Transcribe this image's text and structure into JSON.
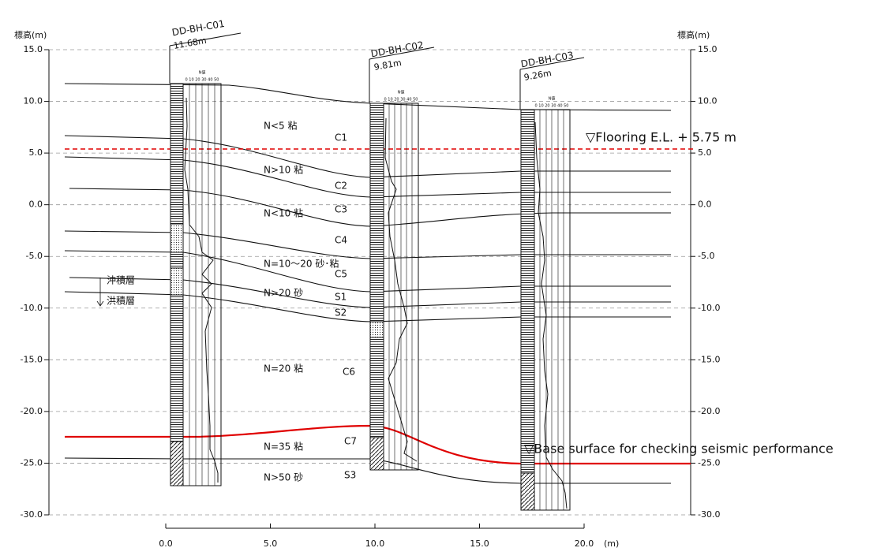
{
  "left_axis": {
    "title": "標高(m)",
    "ticks": [
      "15.0",
      "10.0",
      "5.0",
      "0.0",
      "-5.0",
      "-10.0",
      "-15.0",
      "-20.0",
      "-25.0",
      "-30.0"
    ]
  },
  "right_axis": {
    "title": "標高(m)",
    "ticks": [
      "15.0",
      "10.0",
      "5.0",
      "0.0",
      "-5.0",
      "-10.0",
      "-15.0",
      "-20.0",
      "-25.0",
      "-30.0"
    ]
  },
  "bottom_axis": {
    "ticks": [
      "0.0",
      "5.0",
      "10.0",
      "15.0",
      "20.0"
    ],
    "unit": "(m)"
  },
  "boreholes": [
    {
      "name": "DD-BH-C01",
      "elevation": "11.68m",
      "n_label": "N値",
      "n_scale": "0 10 20 30 40 50"
    },
    {
      "name": "DD-BH-C02",
      "elevation": "9.81m",
      "n_label": "N値",
      "n_scale": "0 10 20 30 40 50"
    },
    {
      "name": "DD-BH-C03",
      "elevation": "9.26m",
      "n_label": "N値",
      "n_scale": "0 10 20 30 40 50"
    }
  ],
  "layers": [
    {
      "description": "N<5 粘",
      "code": "C1"
    },
    {
      "description": "N>10 粘",
      "code": "C2"
    },
    {
      "description": "N<10 粘",
      "code": "C3"
    },
    {
      "code": "C4"
    },
    {
      "description": "N=10～20 砂･粘",
      "code": "C5"
    },
    {
      "description": "N>20 砂",
      "code": "S1"
    },
    {
      "code": "S2"
    },
    {
      "description": "N=20 粘",
      "code": "C6"
    },
    {
      "description": "N=35 粘",
      "code": "C7"
    },
    {
      "description": "N>50 砂",
      "code": "S3"
    }
  ],
  "annotations": {
    "alluvium": "沖積層",
    "diluvium": "洪積層",
    "flooring": "▽Flooring E.L. + 5.75 m",
    "base_surface": "▽Base surface for checking seismic performance"
  }
}
